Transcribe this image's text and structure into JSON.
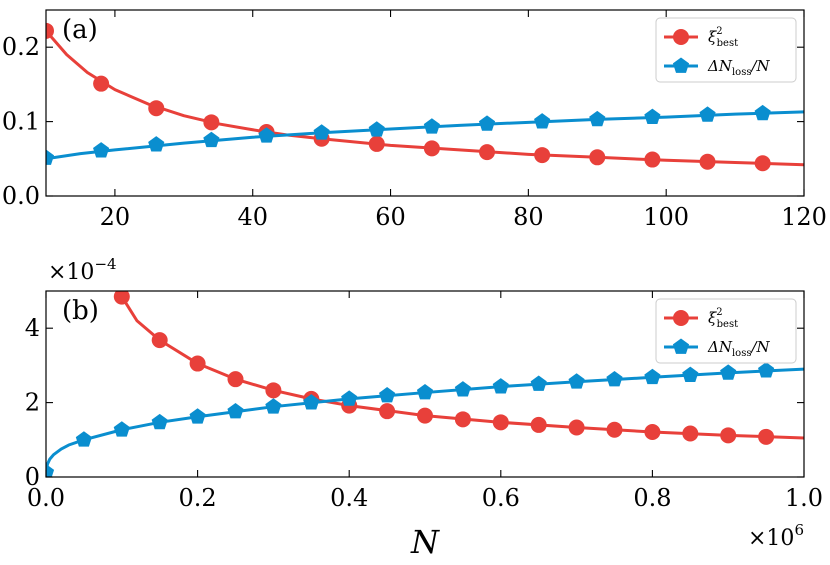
{
  "chart_data": [
    {
      "type": "line",
      "panel_label": "(a)",
      "xlim": [
        10,
        120
      ],
      "ylim": [
        0,
        0.25
      ],
      "xticks": [
        20,
        40,
        60,
        80,
        100,
        120
      ],
      "xtick_labels": [
        "20",
        "40",
        "60",
        "80",
        "100",
        "120"
      ],
      "yticks": [
        0,
        0.1,
        0.2
      ],
      "ytick_labels": [
        "0.0",
        "0.1",
        "0.2"
      ],
      "legend_position": "top-right",
      "series": [
        {
          "name": "xi_best^2",
          "legend_main": "ξ",
          "legend_sup": "2",
          "legend_sub": "best",
          "color": "#e8403a",
          "marker": "circle",
          "x": [
            10,
            18,
            26,
            34,
            42,
            50,
            58,
            66,
            74,
            82,
            90,
            98,
            106,
            114
          ],
          "values": [
            0.222,
            0.151,
            0.118,
            0.099,
            0.086,
            0.077,
            0.07,
            0.064,
            0.059,
            0.055,
            0.052,
            0.049,
            0.046,
            0.044
          ],
          "curve_x": [
            10,
            13,
            16,
            20,
            25,
            30,
            35,
            40,
            45,
            50,
            60,
            70,
            80,
            90,
            100,
            110,
            120
          ],
          "curve_y": [
            0.222,
            0.19,
            0.166,
            0.143,
            0.123,
            0.108,
            0.097,
            0.089,
            0.082,
            0.077,
            0.068,
            0.062,
            0.056,
            0.052,
            0.048,
            0.045,
            0.042
          ]
        },
        {
          "name": "DeltaN_loss/N",
          "legend_main": "ΔN",
          "legend_sub": "loss",
          "legend_tail": "/N",
          "color": "#0a8ecf",
          "marker": "pentagon",
          "x": [
            10,
            18,
            26,
            34,
            42,
            50,
            58,
            66,
            74,
            82,
            90,
            98,
            106,
            114
          ],
          "values": [
            0.051,
            0.061,
            0.069,
            0.075,
            0.081,
            0.085,
            0.089,
            0.093,
            0.097,
            0.1,
            0.103,
            0.106,
            0.109,
            0.111
          ],
          "curve_x": [
            10,
            15,
            20,
            30,
            40,
            50,
            60,
            70,
            80,
            90,
            100,
            110,
            120
          ],
          "curve_y": [
            0.05,
            0.057,
            0.062,
            0.071,
            0.079,
            0.085,
            0.09,
            0.095,
            0.099,
            0.103,
            0.106,
            0.11,
            0.113
          ]
        }
      ]
    },
    {
      "type": "line",
      "panel_label": "(b)",
      "xlim": [
        0,
        1.0
      ],
      "ylim": [
        0,
        5
      ],
      "xticks": [
        0,
        0.2,
        0.4,
        0.6,
        0.8,
        1.0
      ],
      "xtick_labels": [
        "0.0",
        "0.2",
        "0.4",
        "0.6",
        "0.8",
        "1.0"
      ],
      "yticks": [
        0,
        2,
        4
      ],
      "ytick_labels": [
        "0",
        "2",
        "4"
      ],
      "y_multiplier": {
        "base": "×10",
        "exp": "−4"
      },
      "x_multiplier": {
        "base": "×10",
        "exp": "6"
      },
      "xlabel": "N",
      "legend_position": "top-right",
      "series": [
        {
          "name": "xi_best^2",
          "legend_main": "ξ",
          "legend_sup": "2",
          "legend_sub": "best",
          "color": "#e8403a",
          "marker": "circle",
          "x": [
            0.1,
            0.15,
            0.2,
            0.25,
            0.3,
            0.35,
            0.4,
            0.45,
            0.5,
            0.55,
            0.6,
            0.65,
            0.7,
            0.75,
            0.8,
            0.85,
            0.9,
            0.95
          ],
          "values": [
            4.85,
            3.68,
            3.05,
            2.63,
            2.33,
            2.1,
            1.92,
            1.77,
            1.65,
            1.55,
            1.47,
            1.4,
            1.33,
            1.27,
            1.21,
            1.17,
            1.12,
            1.08
          ],
          "curve_x": [
            0.1,
            0.12,
            0.15,
            0.2,
            0.25,
            0.3,
            0.35,
            0.4,
            0.5,
            0.6,
            0.7,
            0.8,
            0.9,
            1.0
          ],
          "curve_y": [
            4.85,
            4.2,
            3.68,
            3.05,
            2.63,
            2.33,
            2.1,
            1.92,
            1.65,
            1.47,
            1.33,
            1.21,
            1.12,
            1.05
          ]
        },
        {
          "name": "DeltaN_loss/N",
          "legend_main": "ΔN",
          "legend_sub": "loss",
          "legend_tail": "/N",
          "color": "#0a8ecf",
          "marker": "pentagon",
          "x": [
            0.0,
            0.05,
            0.1,
            0.15,
            0.2,
            0.25,
            0.3,
            0.35,
            0.4,
            0.45,
            0.5,
            0.55,
            0.6,
            0.65,
            0.7,
            0.75,
            0.8,
            0.85,
            0.9,
            0.95
          ],
          "values": [
            0.12,
            1.0,
            1.27,
            1.47,
            1.62,
            1.76,
            1.89,
            2.0,
            2.1,
            2.19,
            2.27,
            2.35,
            2.43,
            2.5,
            2.56,
            2.62,
            2.68,
            2.74,
            2.8,
            2.86
          ],
          "curve_x": [
            0.0,
            0.002,
            0.005,
            0.01,
            0.02,
            0.03,
            0.05,
            0.1,
            0.15,
            0.2,
            0.3,
            0.4,
            0.5,
            0.6,
            0.7,
            0.8,
            0.9,
            1.0
          ],
          "curve_y": [
            0.12,
            0.35,
            0.48,
            0.6,
            0.75,
            0.86,
            1.0,
            1.27,
            1.47,
            1.62,
            1.89,
            2.1,
            2.27,
            2.43,
            2.56,
            2.68,
            2.8,
            2.9
          ]
        }
      ]
    }
  ]
}
